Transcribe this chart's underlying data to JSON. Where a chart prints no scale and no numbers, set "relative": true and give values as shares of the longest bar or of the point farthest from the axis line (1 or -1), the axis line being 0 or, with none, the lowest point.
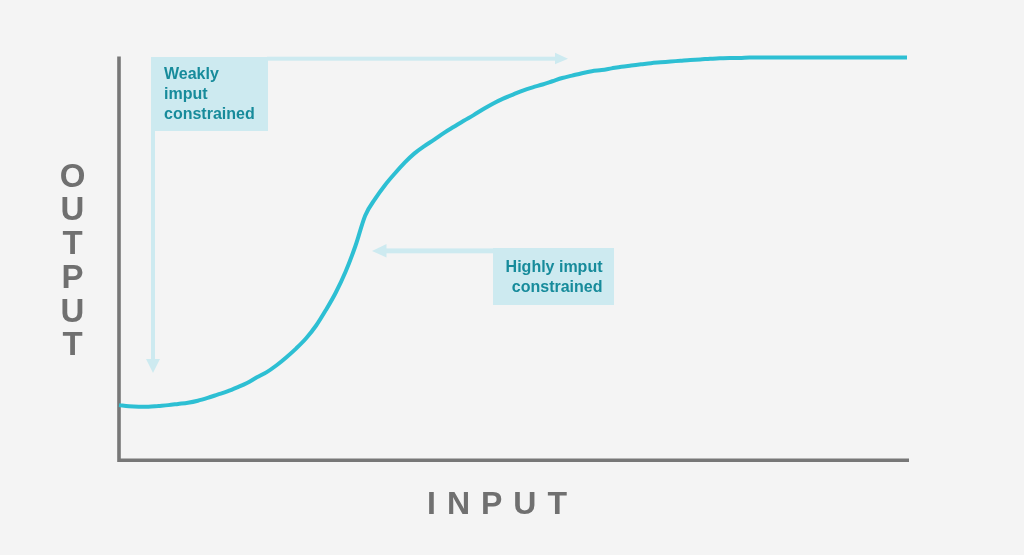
{
  "chart_data": {
    "type": "line",
    "relative": true,
    "xlabel": "INPUT",
    "ylabel": "OUTPUT",
    "categories": [
      null,
      null,
      null,
      null,
      null,
      null,
      null,
      null,
      null,
      null,
      null,
      null,
      null,
      null,
      null,
      null,
      null,
      null,
      null,
      null,
      null,
      null,
      null,
      null,
      null,
      null,
      null,
      null,
      null,
      null,
      null,
      null,
      null,
      null,
      null,
      null,
      null,
      null,
      null,
      null,
      null,
      null,
      null,
      null,
      null,
      null,
      null,
      null,
      null,
      null,
      null,
      null,
      null,
      null,
      null,
      null,
      null,
      null,
      null,
      null,
      null,
      null,
      null,
      null,
      null,
      null,
      null,
      null,
      null,
      null,
      null,
      null,
      null,
      null,
      null,
      null,
      null,
      null,
      null,
      null,
      null
    ],
    "series": [
      {
        "color": "#2dbfd3",
        "values": [
          0.137,
          0.134,
          0.133,
          0.133,
          0.135,
          0.137,
          0.14,
          0.143,
          0.148,
          0.155,
          0.163,
          0.171,
          0.181,
          0.192,
          0.206,
          0.219,
          0.236,
          0.256,
          0.278,
          0.303,
          0.334,
          0.373,
          0.416,
          0.468,
          0.532,
          0.608,
          0.649,
          0.683,
          0.712,
          0.739,
          0.762,
          0.78,
          0.796,
          0.813,
          0.828,
          0.843,
          0.857,
          0.872,
          0.886,
          0.898,
          0.908,
          0.918,
          0.926,
          0.933,
          0.941,
          0.949,
          0.955,
          0.961,
          0.966,
          0.969,
          0.973,
          0.977,
          0.98,
          0.983,
          0.986,
          0.988,
          0.99,
          0.992,
          0.994,
          0.995,
          0.997,
          0.998,
          0.999,
          0.999,
          1,
          1,
          1,
          1,
          1,
          1,
          1,
          1,
          1,
          1,
          1,
          1,
          1,
          1,
          1,
          1,
          1
        ]
      }
    ],
    "annotations": [
      "Weakly imput constrained",
      "Highly imput constrained"
    ],
    "grid": false,
    "legend": false,
    "tick_labels": false,
    "marker": "none",
    "line_style": "solid"
  }
}
